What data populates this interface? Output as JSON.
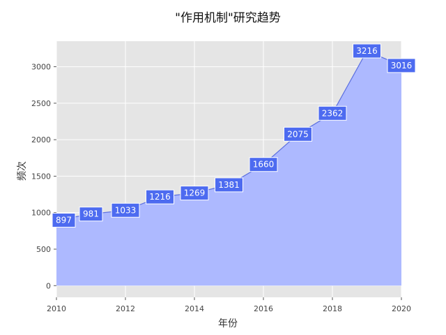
{
  "chart_data": {
    "type": "area",
    "title": "\"作用机制\"研究趋势",
    "xlabel": "年份",
    "ylabel": "频次",
    "x": [
      2010,
      2011,
      2012,
      2013,
      2014,
      2015,
      2016,
      2017,
      2018,
      2019,
      2020
    ],
    "values": [
      897,
      981,
      1033,
      1216,
      1269,
      1381,
      1660,
      2075,
      2362,
      3216,
      3016
    ],
    "xlim": [
      2010,
      2020
    ],
    "ylim": [
      -160,
      3350
    ],
    "x_ticks": [
      2010,
      2012,
      2014,
      2016,
      2018,
      2020
    ],
    "y_ticks": [
      0,
      500,
      1000,
      1500,
      2000,
      2500,
      3000
    ],
    "grid": true,
    "data_labels": true,
    "colors": {
      "plot_background": "#e5e5e5",
      "area_fill": "#adb9ff",
      "line": "#5b6fe0",
      "label_box": "#4d6bf0",
      "grid": "#ffffff"
    }
  }
}
